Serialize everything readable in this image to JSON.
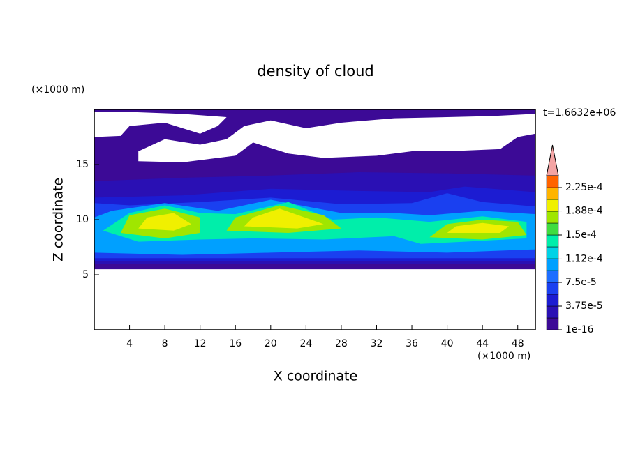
{
  "chart_data": {
    "type": "contour",
    "title": "density of cloud",
    "x_label": "X coordinate",
    "y_label": "Z coordinate",
    "x_unit": "(×1000 m)",
    "y_unit": "(×1000 m)",
    "time_label": "t=1.6632e+06",
    "xlim": [
      0,
      50
    ],
    "xticks": [
      4,
      8,
      12,
      16,
      20,
      24,
      28,
      32,
      36,
      40,
      44,
      48
    ],
    "ylim": [
      0,
      20
    ],
    "yticks": [
      5,
      10,
      15
    ],
    "colorbar": {
      "clim": [
        1e-16,
        0.00024375
      ],
      "ticks": [
        {
          "value": 1e-16,
          "label": "1e-16"
        },
        {
          "value": 3.75e-05,
          "label": "3.75e-5"
        },
        {
          "value": 7.5e-05,
          "label": "7.5e-5"
        },
        {
          "value": 0.000112,
          "label": "1.12e-4"
        },
        {
          "value": 0.00015,
          "label": "1.5e-4"
        },
        {
          "value": 0.000188,
          "label": "1.88e-4"
        },
        {
          "value": 0.000225,
          "label": "2.25e-4"
        }
      ],
      "colors": [
        "#3c0a96",
        "#2a10b4",
        "#1c1cd2",
        "#1a40f0",
        "#1e6eff",
        "#00a0ff",
        "#00d2e6",
        "#00eeaa",
        "#40dc40",
        "#a0e600",
        "#f0f000",
        "#ffb400",
        "#ff6400"
      ],
      "extend_color": "#f4a4a4"
    }
  }
}
